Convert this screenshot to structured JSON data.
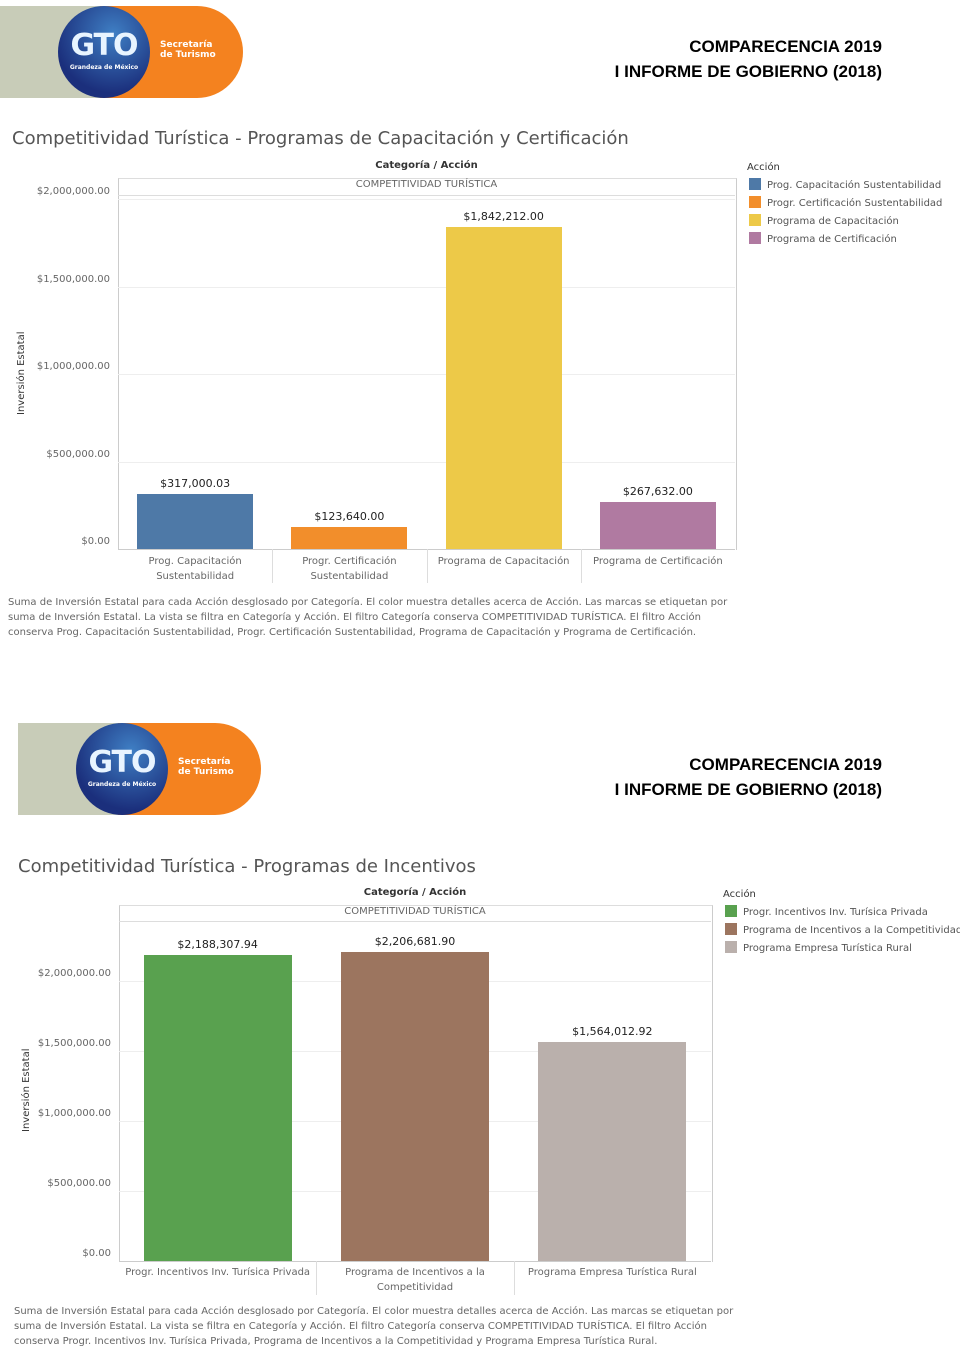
{
  "sections": [
    {
      "logo": {
        "badge": "GTO",
        "tagline": "Grandeza de México",
        "org": [
          "Secretaría",
          "de Turismo"
        ]
      },
      "header": [
        "COMPARECENCIA 2019",
        "I INFORME DE GOBIERNO (2018)"
      ],
      "title": "Competitividad Turística - Programas de Capacitación y Certificación",
      "caption": "Suma de Inversión Estatal para cada Acción desglosado por Categoría.  El color muestra detalles acerca de Acción.  Las marcas se etiquetan por suma de Inversión Estatal. La vista se filtra en Categoría y Acción. El filtro Categoría conserva COMPETITIVIDAD TURÍSTICA. El filtro Acción conserva Prog. Capacitación Sustentabilidad, Progr. Certificación Sustentabilidad, Programa de Capacitación y Programa de Certificación."
    },
    {
      "logo": {
        "badge": "GTO",
        "tagline": "Grandeza de México",
        "org": [
          "Secretaría",
          "de Turismo"
        ]
      },
      "header": [
        "COMPARECENCIA 2019",
        "I INFORME DE GOBIERNO (2018)"
      ],
      "title": "Competitividad Turística - Programas de Incentivos",
      "caption": "Suma de Inversión Estatal para cada Acción desglosado por Categoría.  El color muestra detalles acerca de Acción.  Las marcas se etiquetan por suma de Inversión Estatal. La vista se filtra en Categoría y Acción. El filtro Categoría conserva COMPETITIVIDAD TURÍSTICA. El filtro Acción conserva Progr. Incentivos Inv. Turísica Privada, Programa de Incentivos a la Competitividad y Programa Empresa Turística Rural."
    }
  ],
  "chart_data": [
    {
      "type": "bar",
      "header": "Categoría / Acción",
      "subheader": "COMPETITIVIDAD TURÍSTICA",
      "ylabel": "Inversión Estatal",
      "ylim": [
        0,
        2000000
      ],
      "yticks": [
        0,
        500000,
        1000000,
        1500000,
        2000000
      ],
      "ytick_labels": [
        "$0.00",
        "$500,000.00",
        "$1,000,000.00",
        "$1,500,000.00",
        "$2,000,000.00"
      ],
      "categories": [
        "Prog. Capacitación Sustentabilidad",
        "Progr. Certificación Sustentabilidad",
        "Programa de Capacitación",
        "Programa de Certificación"
      ],
      "values": [
        317000.03,
        123640.0,
        1842212.0,
        267632.0
      ],
      "value_labels": [
        "$317,000.03",
        "$123,640.00",
        "$1,842,212.00",
        "$267,632.00"
      ],
      "colors": [
        "#4e79a7",
        "#f28e2b",
        "#edc948",
        "#b07aa1"
      ],
      "legend_title": "Acción",
      "legend": [
        "Prog. Capacitación Sustentabilidad",
        "Progr. Certificación Sustentabilidad",
        "Programa de Capacitación",
        "Programa de Certificación"
      ],
      "legend_position": "right"
    },
    {
      "type": "bar",
      "header": "Categoría / Acción",
      "subheader": "COMPETITIVIDAD TURÍSTICA",
      "ylabel": "Inversión Estatal",
      "ylim": [
        0,
        2200000
      ],
      "yticks": [
        0,
        500000,
        1000000,
        1500000,
        2000000
      ],
      "ytick_labels": [
        "$0.00",
        "$500,000.00",
        "$1,000,000.00",
        "$1,500,000.00",
        "$2,000,000.00"
      ],
      "categories": [
        "Progr. Incentivos Inv. Turísica Privada",
        "Programa de Incentivos a la Competitividad",
        "Programa Empresa Turística Rural"
      ],
      "values": [
        2188307.94,
        2206681.9,
        1564012.92
      ],
      "value_labels": [
        "$2,188,307.94",
        "$2,206,681.90",
        "$1,564,012.92"
      ],
      "colors": [
        "#59a14f",
        "#9c755f",
        "#bab0ac"
      ],
      "legend_title": "Acción",
      "legend": [
        "Progr. Incentivos Inv. Turísica Privada",
        "Programa de Incentivos a la Competitividad",
        "Programa Empresa Turística Rural"
      ],
      "legend_position": "right"
    }
  ]
}
